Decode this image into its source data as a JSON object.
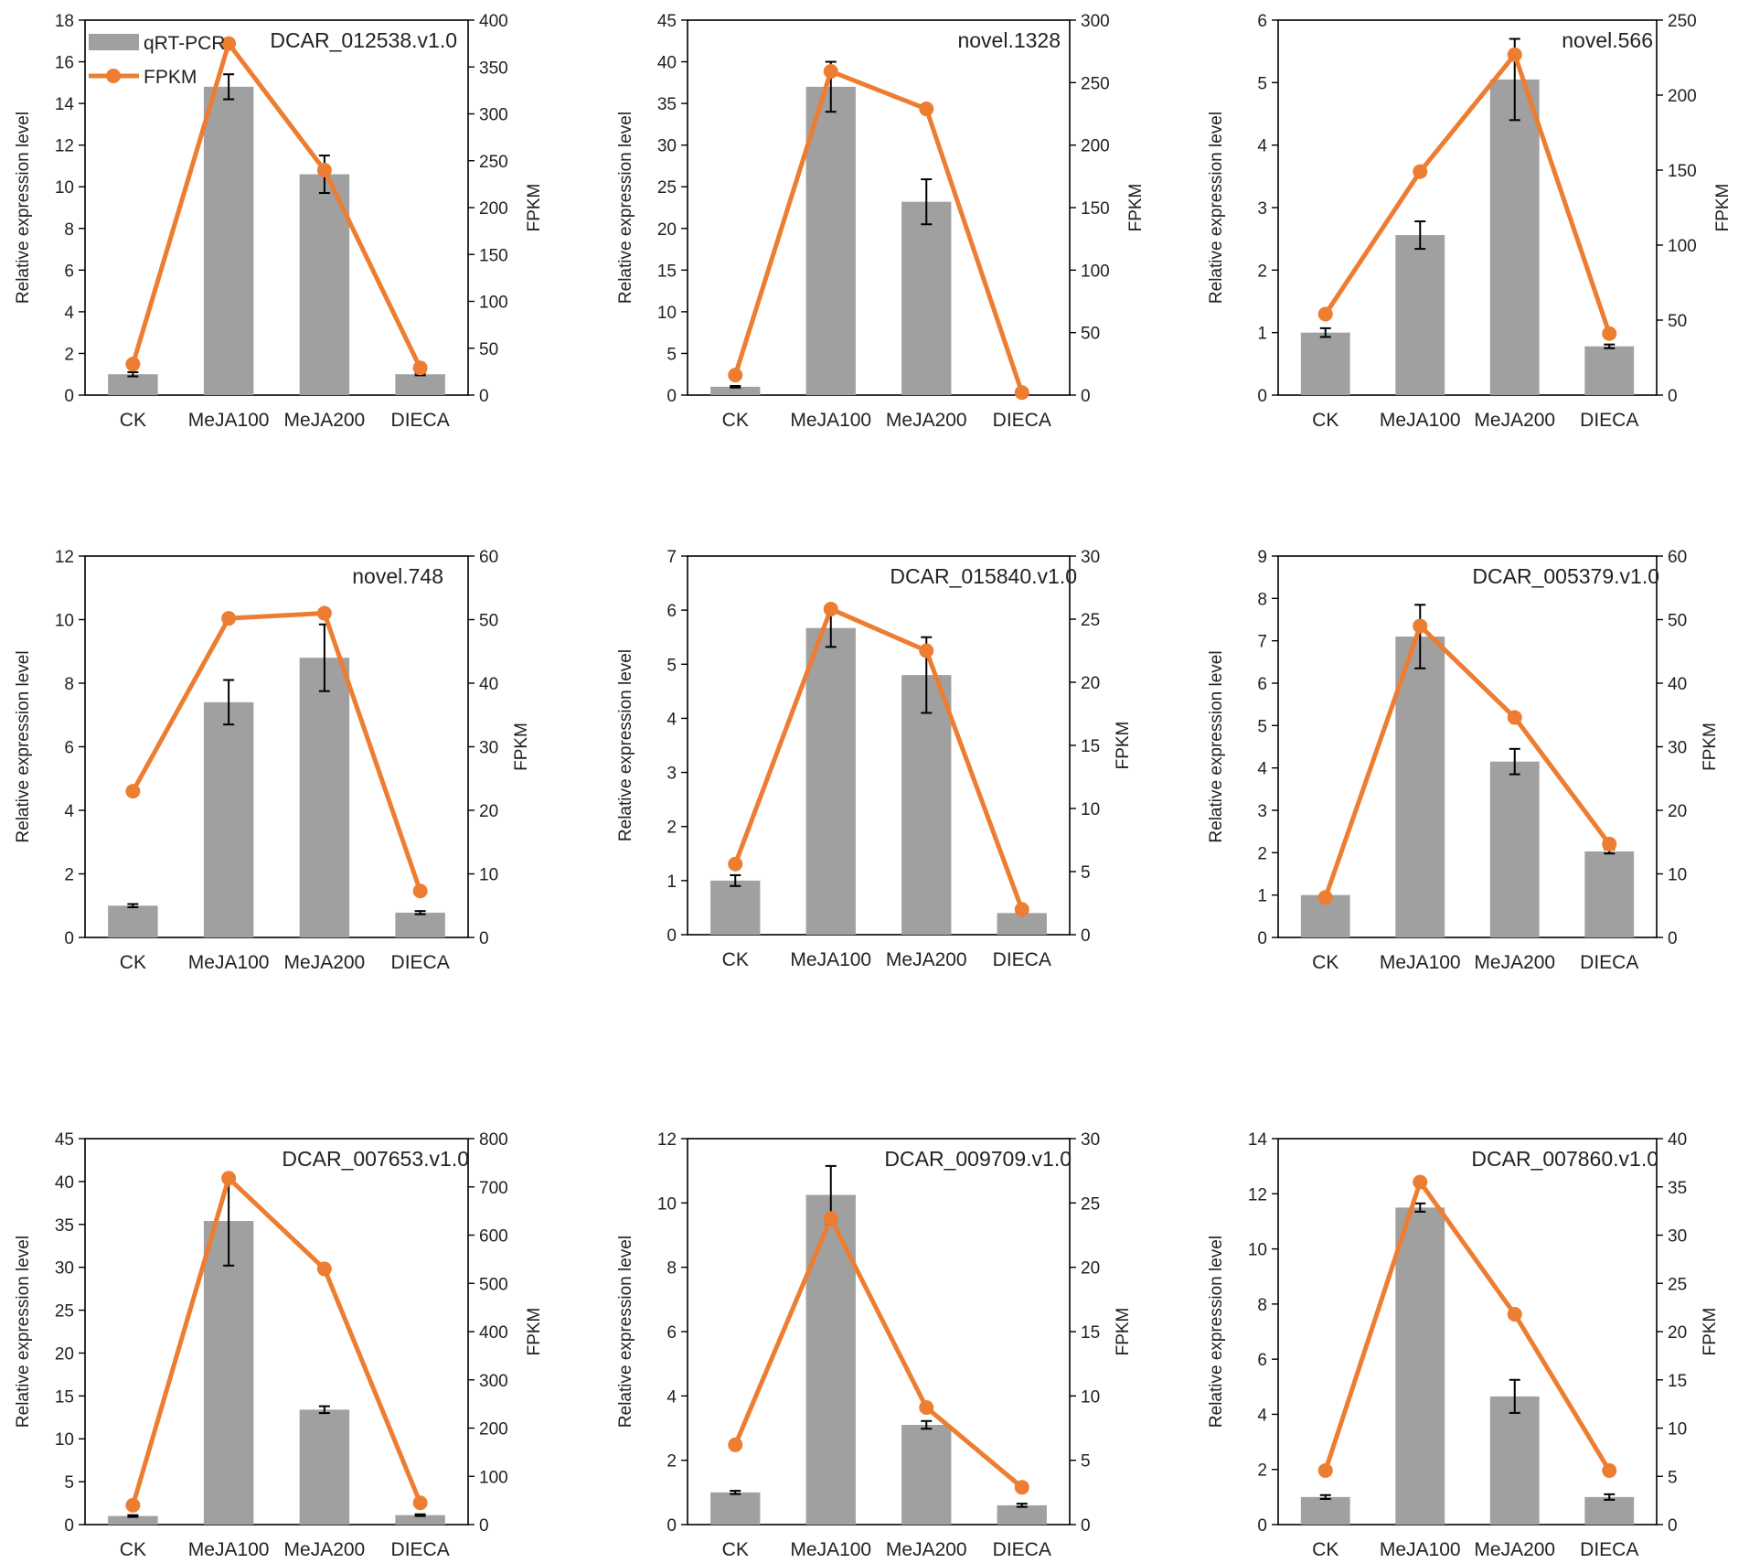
{
  "figure": {
    "series_names": [
      "qRT-PCR",
      "FPKM"
    ],
    "colors": {
      "bar": "#a0a0a0",
      "line": "#ed7d31",
      "axis": "#000000",
      "text": "#222222"
    },
    "ylabel_left": "Relative expression level",
    "ylabel_right": "FPKM"
  },
  "chart_data": [
    {
      "type": "bar",
      "title": "DCAR_012538.v1.0",
      "categories": [
        "CK",
        "MeJA100",
        "MeJA200",
        "DIECA"
      ],
      "ylabel": "Relative expression level",
      "y2label": "FPKM",
      "ylim": [
        0,
        18
      ],
      "yticks": [
        0,
        2,
        4,
        6,
        8,
        10,
        12,
        14,
        16,
        18
      ],
      "y2lim": [
        0,
        400
      ],
      "y2ticks": [
        0,
        50,
        100,
        150,
        200,
        250,
        300,
        350,
        400
      ],
      "legend": "top-left",
      "series": [
        {
          "name": "qRT-PCR",
          "type": "bar",
          "values": [
            1.0,
            14.8,
            10.6,
            1.0
          ],
          "errors": [
            0.1,
            0.6,
            0.9,
            0.05
          ]
        },
        {
          "name": "FPKM",
          "type": "line",
          "axis": "right",
          "values": [
            33,
            375,
            240,
            29
          ]
        }
      ]
    },
    {
      "type": "bar",
      "title": "novel.1328",
      "categories": [
        "CK",
        "MeJA100",
        "MeJA200",
        "DIECA"
      ],
      "ylabel": "Relative expression level",
      "y2label": "FPKM",
      "ylim": [
        0,
        45
      ],
      "yticks": [
        0,
        5,
        10,
        15,
        20,
        25,
        30,
        35,
        40,
        45
      ],
      "y2lim": [
        0,
        300
      ],
      "y2ticks": [
        0,
        50,
        100,
        150,
        200,
        250,
        300
      ],
      "series": [
        {
          "name": "qRT-PCR",
          "type": "bar",
          "values": [
            1.0,
            37.0,
            23.2,
            0.0
          ],
          "errors": [
            0.1,
            3.0,
            2.7,
            0.0
          ]
        },
        {
          "name": "FPKM",
          "type": "line",
          "axis": "right",
          "values": [
            16,
            259,
            229,
            2
          ]
        }
      ]
    },
    {
      "type": "bar",
      "title": "novel.566",
      "categories": [
        "CK",
        "MeJA100",
        "MeJA200",
        "DIECA"
      ],
      "ylabel": "Relative expression level",
      "y2label": "FPKM",
      "ylim": [
        0,
        6
      ],
      "yticks": [
        0,
        1,
        2,
        3,
        4,
        5,
        6
      ],
      "y2lim": [
        0,
        250
      ],
      "y2ticks": [
        0,
        50,
        100,
        150,
        200,
        250
      ],
      "series": [
        {
          "name": "qRT-PCR",
          "type": "bar",
          "values": [
            1.0,
            2.56,
            5.05,
            0.78
          ],
          "errors": [
            0.07,
            0.22,
            0.65,
            0.03
          ]
        },
        {
          "name": "FPKM",
          "type": "line",
          "axis": "right",
          "values": [
            54,
            149,
            227,
            41
          ]
        }
      ]
    },
    {
      "type": "bar",
      "title": "novel.748",
      "categories": [
        "CK",
        "MeJA100",
        "MeJA200",
        "DIECA"
      ],
      "ylabel": "Relative expression level",
      "y2label": "FPKM",
      "ylim": [
        0,
        12
      ],
      "yticks": [
        0,
        2,
        4,
        6,
        8,
        10,
        12
      ],
      "y2lim": [
        0,
        60
      ],
      "y2ticks": [
        0,
        10,
        20,
        30,
        40,
        50,
        60
      ],
      "series": [
        {
          "name": "qRT-PCR",
          "type": "bar",
          "values": [
            1.0,
            7.4,
            8.8,
            0.78
          ],
          "errors": [
            0.05,
            0.7,
            1.05,
            0.05
          ]
        },
        {
          "name": "FPKM",
          "type": "line",
          "axis": "right",
          "values": [
            23,
            50.2,
            51,
            7.3
          ]
        }
      ]
    },
    {
      "type": "bar",
      "title": "DCAR_015840.v1.0",
      "categories": [
        "CK",
        "MeJA100",
        "MeJA200",
        "DIECA"
      ],
      "ylabel": "Relative expression level",
      "y2label": "FPKM",
      "ylim": [
        0,
        7
      ],
      "yticks": [
        0,
        1,
        2,
        3,
        4,
        5,
        6,
        7
      ],
      "y2lim": [
        0,
        30
      ],
      "y2ticks": [
        0,
        5,
        10,
        15,
        20,
        25,
        30
      ],
      "series": [
        {
          "name": "qRT-PCR",
          "type": "bar",
          "values": [
            1.0,
            5.67,
            4.8,
            0.4
          ],
          "errors": [
            0.1,
            0.35,
            0.7,
            0.0
          ]
        },
        {
          "name": "FPKM",
          "type": "line",
          "axis": "right",
          "values": [
            5.6,
            25.8,
            22.5,
            2.0
          ]
        }
      ]
    },
    {
      "type": "bar",
      "title": "DCAR_005379.v1.0",
      "categories": [
        "CK",
        "MeJA100",
        "MeJA200",
        "DIECA"
      ],
      "ylabel": "Relative expression level",
      "y2label": "FPKM",
      "ylim": [
        0,
        9
      ],
      "yticks": [
        0,
        1,
        2,
        3,
        4,
        5,
        6,
        7,
        8,
        9
      ],
      "y2lim": [
        0,
        60
      ],
      "y2ticks": [
        0,
        10,
        20,
        30,
        40,
        50,
        60
      ],
      "series": [
        {
          "name": "qRT-PCR",
          "type": "bar",
          "values": [
            1.0,
            7.1,
            4.15,
            2.03
          ],
          "errors": [
            0.0,
            0.75,
            0.3,
            0.05
          ]
        },
        {
          "name": "FPKM",
          "type": "line",
          "axis": "right",
          "values": [
            6.3,
            49,
            34.6,
            14.7
          ]
        }
      ]
    },
    {
      "type": "bar",
      "title": "DCAR_007653.v1.0",
      "categories": [
        "CK",
        "MeJA100",
        "MeJA200",
        "DIECA"
      ],
      "ylabel": "Relative expression level",
      "y2label": "FPKM",
      "ylim": [
        0,
        45
      ],
      "yticks": [
        0,
        5,
        10,
        15,
        20,
        25,
        30,
        35,
        40,
        45
      ],
      "y2lim": [
        0,
        800
      ],
      "y2ticks": [
        0,
        100,
        200,
        300,
        400,
        500,
        600,
        700,
        800
      ],
      "series": [
        {
          "name": "qRT-PCR",
          "type": "bar",
          "values": [
            1.0,
            35.4,
            13.4,
            1.1
          ],
          "errors": [
            0.1,
            5.2,
            0.4,
            0.1
          ]
        },
        {
          "name": "FPKM",
          "type": "line",
          "axis": "right",
          "values": [
            40,
            718,
            530,
            45
          ]
        }
      ]
    },
    {
      "type": "bar",
      "title": "DCAR_009709.v1.0",
      "categories": [
        "CK",
        "MeJA100",
        "MeJA200",
        "DIECA"
      ],
      "ylabel": "Relative expression level",
      "y2label": "FPKM",
      "ylim": [
        0,
        12
      ],
      "yticks": [
        0,
        2,
        4,
        6,
        8,
        10,
        12
      ],
      "y2lim": [
        0,
        30
      ],
      "y2ticks": [
        0,
        5,
        10,
        15,
        20,
        25,
        30
      ],
      "series": [
        {
          "name": "qRT-PCR",
          "type": "bar",
          "values": [
            1.0,
            10.25,
            3.1,
            0.6
          ],
          "errors": [
            0.05,
            0.9,
            0.12,
            0.05
          ]
        },
        {
          "name": "FPKM",
          "type": "line",
          "axis": "right",
          "values": [
            6.2,
            23.8,
            9.1,
            2.9
          ]
        }
      ]
    },
    {
      "type": "bar",
      "title": "DCAR_007860.v1.0",
      "categories": [
        "CK",
        "MeJA100",
        "MeJA200",
        "DIECA"
      ],
      "ylabel": "Relative expression level",
      "y2label": "FPKM",
      "ylim": [
        0,
        14
      ],
      "yticks": [
        0,
        2,
        4,
        6,
        8,
        10,
        12,
        14
      ],
      "y2lim": [
        0,
        40
      ],
      "y2ticks": [
        0,
        5,
        10,
        15,
        20,
        25,
        30,
        35,
        40
      ],
      "series": [
        {
          "name": "qRT-PCR",
          "type": "bar",
          "values": [
            1.0,
            11.5,
            4.65,
            1.0
          ],
          "errors": [
            0.07,
            0.15,
            0.6,
            0.1
          ]
        },
        {
          "name": "FPKM",
          "type": "line",
          "axis": "right",
          "values": [
            5.6,
            35.5,
            21.8,
            5.6
          ]
        }
      ]
    }
  ]
}
